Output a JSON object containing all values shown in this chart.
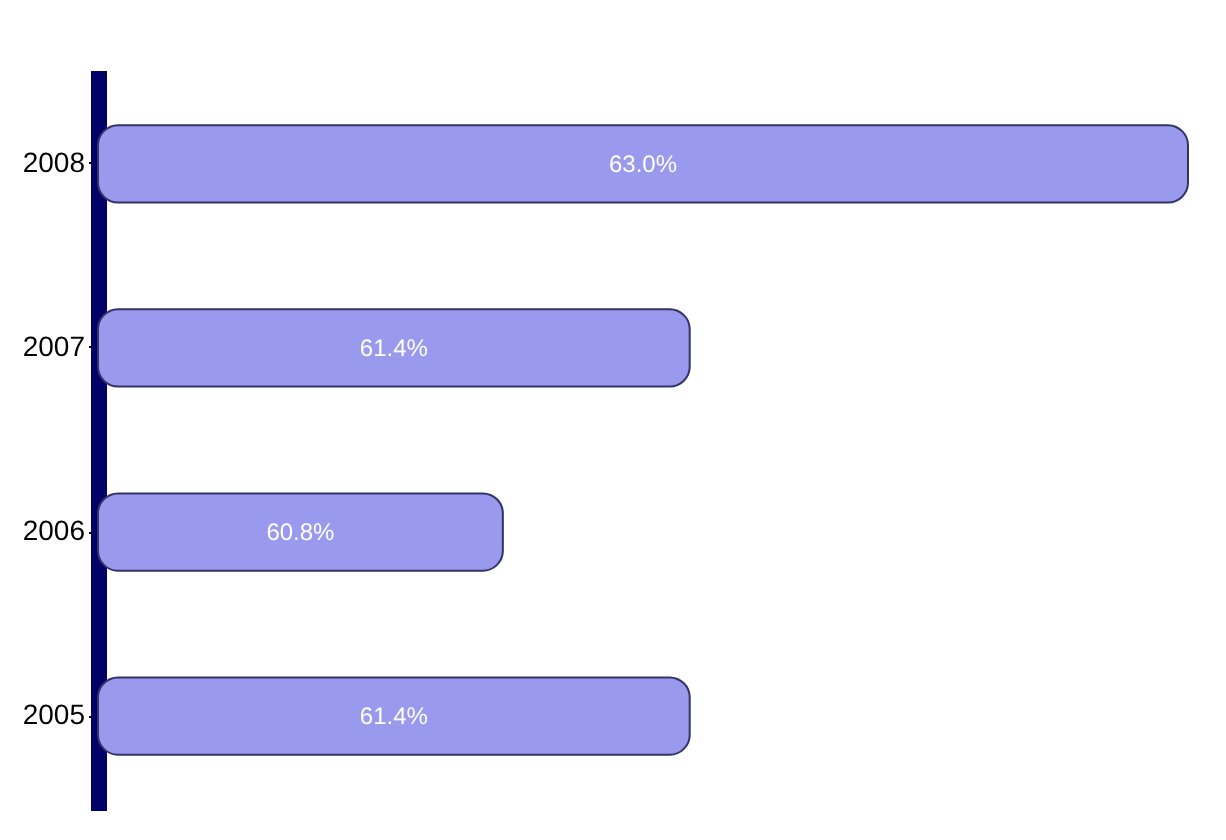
{
  "chart_data": {
    "type": "bar",
    "orientation": "horizontal",
    "categories": [
      "2008",
      "2007",
      "2006",
      "2005"
    ],
    "values": [
      63.0,
      61.4,
      60.8,
      61.4
    ],
    "value_labels": [
      "63.0%",
      "61.4%",
      "60.8%",
      "61.4%"
    ],
    "color": "#9999ee",
    "xlim": [
      59.5,
      63.0
    ],
    "tick_labels": "y",
    "grid": false
  }
}
